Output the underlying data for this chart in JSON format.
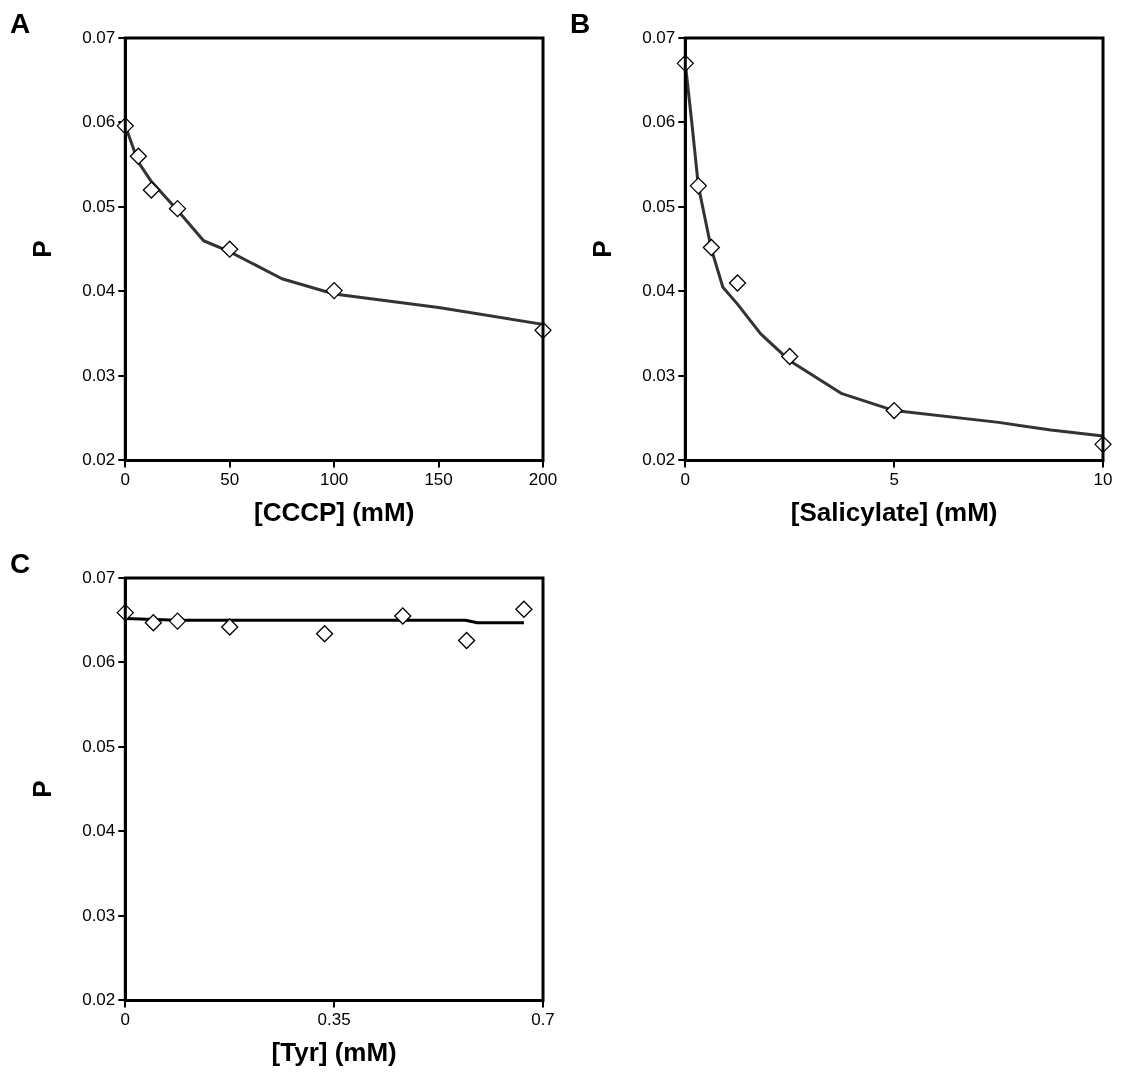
{
  "chart_data": [
    {
      "type": "scatter",
      "title": "A",
      "xlabel": "[CCCP] (mM)",
      "ylabel": "P",
      "xlim": [
        0,
        200
      ],
      "xticks": [
        0,
        50,
        100,
        150,
        200
      ],
      "ylim": [
        0.02,
        0.07
      ],
      "yticks": [
        0.02,
        0.03,
        0.04,
        0.05,
        0.06,
        0.07
      ],
      "grid": false,
      "legend": false,
      "series": [
        {
          "type": "line",
          "color": "#333333",
          "marker": "none",
          "x": [
            0,
            6.25,
            12.5,
            25,
            37.5,
            50,
            75,
            100,
            150,
            200
          ],
          "values": [
            0.0596,
            0.0553,
            0.053,
            0.0496,
            0.046,
            0.0447,
            0.0415,
            0.0397,
            0.0381,
            0.0361
          ]
        },
        {
          "type": "scatter",
          "color": "#000000",
          "marker": "diamond",
          "x": [
            0,
            6.25,
            12.5,
            25,
            50,
            100,
            200
          ],
          "values": [
            0.0596,
            0.056,
            0.052,
            0.0498,
            0.045,
            0.0401,
            0.0354
          ]
        }
      ]
    },
    {
      "type": "scatter",
      "title": "B",
      "xlabel": "[Salicylate] (mM)",
      "ylabel": "P",
      "xlim": [
        0,
        10
      ],
      "xticks": [
        0,
        5,
        10
      ],
      "ylim": [
        0.02,
        0.07
      ],
      "yticks": [
        0.02,
        0.03,
        0.04,
        0.05,
        0.06,
        0.07
      ],
      "grid": false,
      "legend": false,
      "series": [
        {
          "type": "line",
          "color": "#333333",
          "marker": "none",
          "x": [
            0,
            0.156,
            0.3125,
            0.625,
            0.9,
            1.25,
            1.8,
            2.5,
            3.75,
            5,
            7.5,
            8.75,
            10
          ],
          "values": [
            0.067,
            0.06,
            0.0525,
            0.045,
            0.0405,
            0.0385,
            0.035,
            0.0318,
            0.0279,
            0.0259,
            0.0245,
            0.0236,
            0.0229
          ]
        },
        {
          "type": "scatter",
          "color": "#000000",
          "marker": "diamond",
          "x": [
            0,
            0.3125,
            0.625,
            1.25,
            2.5,
            5,
            10
          ],
          "values": [
            0.067,
            0.0525,
            0.0452,
            0.041,
            0.0323,
            0.0259,
            0.0219
          ]
        }
      ]
    },
    {
      "type": "scatter",
      "title": "C",
      "xlabel": "[Tyr] (mM)",
      "ylabel": "P",
      "xlim": [
        0,
        0.7
      ],
      "xticks": [
        0,
        0.35,
        0.7
      ],
      "ylim": [
        0.02,
        0.07
      ],
      "yticks": [
        0.02,
        0.03,
        0.04,
        0.05,
        0.06,
        0.07
      ],
      "grid": false,
      "legend": false,
      "series": [
        {
          "type": "line",
          "color": "#000000",
          "marker": "none",
          "x": [
            0,
            0.0875,
            0.57,
            0.59,
            0.668
          ],
          "values": [
            0.0652,
            0.065,
            0.065,
            0.0647,
            0.0647
          ]
        },
        {
          "type": "scatter",
          "color": "#000000",
          "marker": "diamond",
          "x": [
            0,
            0.047,
            0.0875,
            0.175,
            0.334,
            0.465,
            0.572,
            0.668
          ],
          "values": [
            0.0659,
            0.0647,
            0.0649,
            0.0642,
            0.0634,
            0.0655,
            0.0626,
            0.0663
          ]
        }
      ]
    }
  ]
}
